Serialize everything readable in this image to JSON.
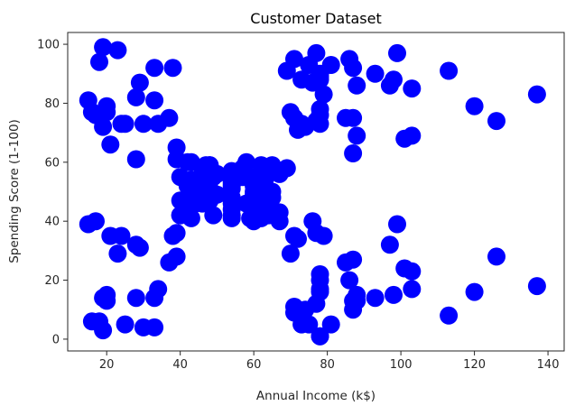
{
  "chart_data": {
    "type": "scatter",
    "title": "Customer Dataset",
    "xlabel": "Annual Income (k$)",
    "ylabel": "Spending Score (1-100)",
    "xlim": [
      9.4,
      144.4
    ],
    "ylim": [
      -4,
      104
    ],
    "x_ticks": [
      20,
      40,
      60,
      80,
      100,
      120,
      140
    ],
    "y_ticks": [
      0,
      20,
      40,
      60,
      80,
      100
    ],
    "x_tick_labels": [
      "20",
      "40",
      "60",
      "80",
      "100",
      "120",
      "140"
    ],
    "y_tick_labels": [
      "0",
      "20",
      "40",
      "60",
      "80",
      "100"
    ],
    "grid": false,
    "colors": {
      "point": "#0000ff",
      "axis": "#262626"
    },
    "points": [
      [
        15,
        39
      ],
      [
        15,
        81
      ],
      [
        16,
        6
      ],
      [
        16,
        77
      ],
      [
        17,
        40
      ],
      [
        17,
        76
      ],
      [
        18,
        6
      ],
      [
        18,
        94
      ],
      [
        19,
        3
      ],
      [
        19,
        72
      ],
      [
        19,
        14
      ],
      [
        19,
        99
      ],
      [
        20,
        15
      ],
      [
        20,
        77
      ],
      [
        20,
        13
      ],
      [
        20,
        79
      ],
      [
        21,
        35
      ],
      [
        21,
        66
      ],
      [
        23,
        29
      ],
      [
        23,
        98
      ],
      [
        24,
        35
      ],
      [
        24,
        73
      ],
      [
        25,
        5
      ],
      [
        25,
        73
      ],
      [
        28,
        14
      ],
      [
        28,
        82
      ],
      [
        28,
        32
      ],
      [
        28,
        61
      ],
      [
        29,
        31
      ],
      [
        29,
        87
      ],
      [
        30,
        4
      ],
      [
        30,
        73
      ],
      [
        33,
        4
      ],
      [
        33,
        92
      ],
      [
        33,
        14
      ],
      [
        33,
        81
      ],
      [
        34,
        17
      ],
      [
        34,
        73
      ],
      [
        37,
        26
      ],
      [
        37,
        75
      ],
      [
        38,
        35
      ],
      [
        38,
        92
      ],
      [
        39,
        36
      ],
      [
        39,
        61
      ],
      [
        39,
        28
      ],
      [
        39,
        65
      ],
      [
        40,
        55
      ],
      [
        40,
        47
      ],
      [
        40,
        42
      ],
      [
        40,
        42
      ],
      [
        42,
        52
      ],
      [
        42,
        60
      ],
      [
        43,
        54
      ],
      [
        43,
        60
      ],
      [
        43,
        45
      ],
      [
        43,
        41
      ],
      [
        44,
        50
      ],
      [
        44,
        46
      ],
      [
        46,
        51
      ],
      [
        46,
        46
      ],
      [
        46,
        56
      ],
      [
        46,
        55
      ],
      [
        47,
        52
      ],
      [
        47,
        59
      ],
      [
        48,
        51
      ],
      [
        48,
        59
      ],
      [
        48,
        50
      ],
      [
        48,
        48
      ],
      [
        48,
        59
      ],
      [
        48,
        47
      ],
      [
        49,
        55
      ],
      [
        49,
        42
      ],
      [
        50,
        49
      ],
      [
        50,
        56
      ],
      [
        54,
        47
      ],
      [
        54,
        54
      ],
      [
        54,
        53
      ],
      [
        54,
        48
      ],
      [
        54,
        52
      ],
      [
        54,
        42
      ],
      [
        54,
        51
      ],
      [
        54,
        55
      ],
      [
        54,
        41
      ],
      [
        54,
        44
      ],
      [
        54,
        57
      ],
      [
        54,
        46
      ],
      [
        57,
        58
      ],
      [
        57,
        55
      ],
      [
        58,
        60
      ],
      [
        58,
        46
      ],
      [
        59,
        55
      ],
      [
        59,
        41
      ],
      [
        60,
        49
      ],
      [
        60,
        40
      ],
      [
        60,
        42
      ],
      [
        60,
        52
      ],
      [
        60,
        47
      ],
      [
        60,
        50
      ],
      [
        61,
        42
      ],
      [
        61,
        49
      ],
      [
        62,
        41
      ],
      [
        62,
        48
      ],
      [
        62,
        59
      ],
      [
        62,
        55
      ],
      [
        62,
        56
      ],
      [
        62,
        42
      ],
      [
        63,
        50
      ],
      [
        63,
        46
      ],
      [
        63,
        43
      ],
      [
        63,
        48
      ],
      [
        63,
        52
      ],
      [
        63,
        54
      ],
      [
        64,
        42
      ],
      [
        64,
        46
      ],
      [
        65,
        48
      ],
      [
        65,
        50
      ],
      [
        65,
        43
      ],
      [
        65,
        59
      ],
      [
        67,
        43
      ],
      [
        67,
        57
      ],
      [
        67,
        56
      ],
      [
        67,
        40
      ],
      [
        69,
        58
      ],
      [
        69,
        91
      ],
      [
        70,
        29
      ],
      [
        70,
        77
      ],
      [
        71,
        35
      ],
      [
        71,
        95
      ],
      [
        71,
        11
      ],
      [
        71,
        75
      ],
      [
        71,
        9
      ],
      [
        71,
        75
      ],
      [
        72,
        34
      ],
      [
        72,
        71
      ],
      [
        73,
        5
      ],
      [
        73,
        88
      ],
      [
        73,
        7
      ],
      [
        73,
        73
      ],
      [
        74,
        10
      ],
      [
        74,
        72
      ],
      [
        75,
        5
      ],
      [
        75,
        93
      ],
      [
        76,
        40
      ],
      [
        76,
        87
      ],
      [
        77,
        12
      ],
      [
        77,
        97
      ],
      [
        77,
        36
      ],
      [
        77,
        74
      ],
      [
        78,
        22
      ],
      [
        78,
        90
      ],
      [
        78,
        17
      ],
      [
        78,
        88
      ],
      [
        78,
        20
      ],
      [
        78,
        76
      ],
      [
        78,
        16
      ],
      [
        78,
        89
      ],
      [
        78,
        1
      ],
      [
        78,
        78
      ],
      [
        78,
        1
      ],
      [
        78,
        73
      ],
      [
        79,
        35
      ],
      [
        79,
        83
      ],
      [
        81,
        5
      ],
      [
        81,
        93
      ],
      [
        85,
        26
      ],
      [
        85,
        75
      ],
      [
        86,
        20
      ],
      [
        86,
        95
      ],
      [
        87,
        27
      ],
      [
        87,
        63
      ],
      [
        87,
        13
      ],
      [
        87,
        75
      ],
      [
        87,
        10
      ],
      [
        87,
        92
      ],
      [
        88,
        13
      ],
      [
        88,
        86
      ],
      [
        88,
        15
      ],
      [
        88,
        69
      ],
      [
        93,
        14
      ],
      [
        93,
        90
      ],
      [
        97,
        32
      ],
      [
        97,
        86
      ],
      [
        98,
        15
      ],
      [
        98,
        88
      ],
      [
        99,
        39
      ],
      [
        99,
        97
      ],
      [
        101,
        24
      ],
      [
        101,
        68
      ],
      [
        103,
        17
      ],
      [
        103,
        85
      ],
      [
        103,
        23
      ],
      [
        103,
        69
      ],
      [
        113,
        8
      ],
      [
        113,
        91
      ],
      [
        120,
        16
      ],
      [
        120,
        79
      ],
      [
        126,
        28
      ],
      [
        126,
        74
      ],
      [
        137,
        18
      ],
      [
        137,
        83
      ]
    ]
  }
}
